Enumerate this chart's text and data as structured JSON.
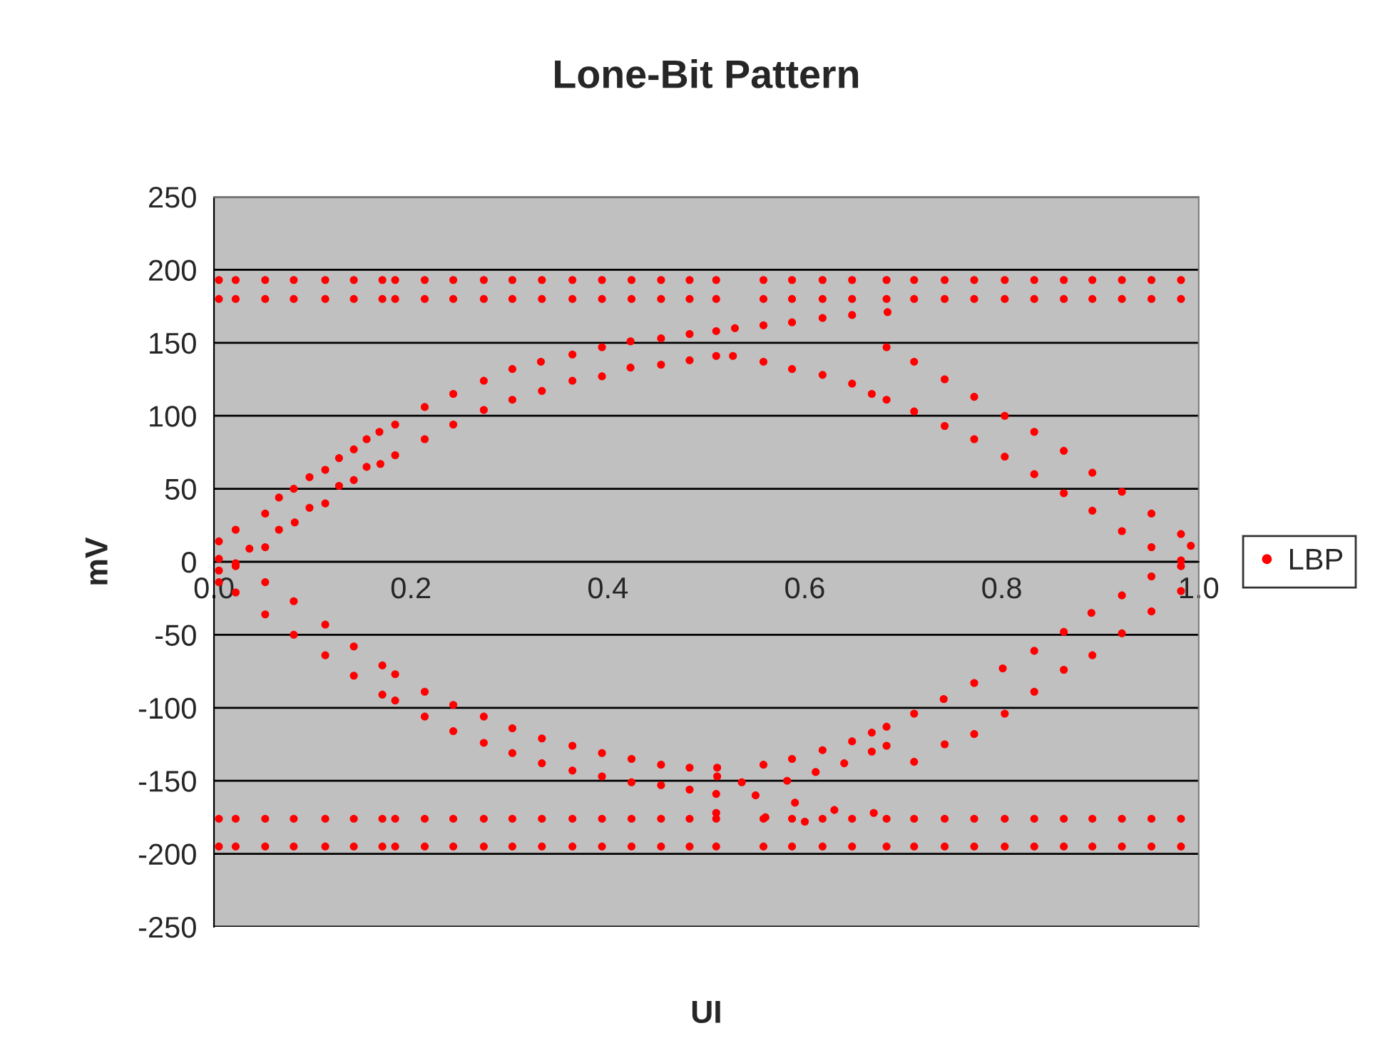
{
  "chart_data": {
    "type": "scatter",
    "title": "Lone-Bit Pattern",
    "xlabel": "UI",
    "ylabel": "mV",
    "xlim": [
      0,
      1
    ],
    "ylim": [
      -250,
      250
    ],
    "xticks": [
      {
        "value": 0,
        "label": "0.0"
      },
      {
        "value": 0.2,
        "label": "0.2"
      },
      {
        "value": 0.4,
        "label": "0.4"
      },
      {
        "value": 0.6,
        "label": "0.6"
      },
      {
        "value": 0.8,
        "label": "0.8"
      },
      {
        "value": 1,
        "label": "1.0"
      }
    ],
    "yticks": [
      -250,
      -200,
      -150,
      -100,
      -50,
      0,
      50,
      100,
      150,
      200,
      250
    ],
    "grid": "y",
    "legend": "right",
    "marker": "circle",
    "series": [
      {
        "name": "LBP",
        "color": "#ff0000",
        "x": [
          0.005,
          0.022,
          0.052,
          0.066,
          0.081,
          0.097,
          0.113,
          0.127,
          0.142,
          0.155,
          0.168,
          0.184,
          0.214,
          0.243,
          0.274,
          0.303,
          0.332,
          0.364,
          0.394,
          0.423,
          0.454,
          0.483,
          0.005,
          0.022,
          0.036,
          0.052,
          0.066,
          0.082,
          0.097,
          0.113,
          0.127,
          0.142,
          0.155,
          0.169,
          0.184,
          0.214,
          0.243,
          0.274,
          0.303,
          0.333,
          0.364,
          0.394,
          0.423,
          0.454,
          0.483,
          0.51,
          0.529,
          0.558,
          0.587,
          0.618,
          0.648,
          0.684,
          0.51,
          0.527,
          0.558,
          0.587,
          0.618,
          0.648,
          0.668,
          0.683,
          0.711,
          0.742,
          0.772,
          0.803,
          0.833,
          0.863,
          0.892,
          0.922,
          0.952,
          0.982,
          0.683,
          0.711,
          0.742,
          0.772,
          0.803,
          0.833,
          0.863,
          0.892,
          0.922,
          0.952,
          0.982,
          0.992,
          0.005,
          0.022,
          0.052,
          0.081,
          0.113,
          0.142,
          0.171,
          0.184,
          0.214,
          0.243,
          0.274,
          0.303,
          0.333,
          0.364,
          0.394,
          0.424,
          0.454,
          0.483,
          0.005,
          0.022,
          0.052,
          0.081,
          0.113,
          0.142,
          0.171,
          0.184,
          0.214,
          0.243,
          0.274,
          0.303,
          0.333,
          0.364,
          0.394,
          0.424,
          0.454,
          0.483,
          0.511,
          0.558,
          0.587,
          0.618,
          0.648,
          0.668,
          0.683,
          0.711,
          0.741,
          0.772,
          0.801,
          0.833,
          0.863,
          0.891,
          0.922,
          0.952,
          0.982,
          0.511,
          0.536,
          0.582,
          0.611,
          0.64,
          0.668,
          0.683,
          0.711,
          0.742,
          0.772,
          0.803,
          0.833,
          0.863,
          0.892,
          0.922,
          0.952,
          0.982,
          0.51,
          0.55,
          0.59,
          0.63,
          0.67,
          0.51,
          0.56,
          0.6,
          0.005,
          0.022,
          0.052,
          0.081,
          0.113,
          0.142,
          0.171,
          0.184,
          0.214,
          0.243,
          0.274,
          0.303,
          0.333,
          0.364,
          0.394,
          0.424,
          0.454,
          0.483,
          0.51,
          0.558,
          0.587,
          0.618,
          0.648,
          0.683,
          0.711,
          0.742,
          0.772,
          0.803,
          0.833,
          0.863,
          0.892,
          0.922,
          0.952,
          0.982,
          0.005,
          0.022,
          0.052,
          0.081,
          0.113,
          0.142,
          0.171,
          0.184,
          0.214,
          0.243,
          0.274,
          0.303,
          0.333,
          0.364,
          0.394,
          0.424,
          0.454,
          0.483,
          0.51,
          0.558,
          0.587,
          0.618,
          0.648,
          0.683,
          0.711,
          0.742,
          0.772,
          0.803,
          0.833,
          0.863,
          0.892,
          0.922,
          0.952,
          0.982,
          0.005,
          0.022,
          0.052,
          0.081,
          0.113,
          0.142,
          0.171,
          0.184,
          0.214,
          0.243,
          0.274,
          0.303,
          0.333,
          0.364,
          0.394,
          0.424,
          0.454,
          0.483,
          0.51,
          0.558,
          0.587,
          0.618,
          0.648,
          0.683,
          0.711,
          0.742,
          0.772,
          0.803,
          0.833,
          0.863,
          0.892,
          0.922,
          0.952,
          0.982,
          0.005,
          0.022,
          0.052,
          0.081,
          0.113,
          0.142,
          0.171,
          0.184,
          0.214,
          0.243,
          0.274,
          0.303,
          0.333,
          0.364,
          0.394,
          0.424,
          0.454,
          0.483,
          0.51,
          0.558,
          0.587,
          0.618,
          0.648,
          0.683,
          0.711,
          0.742,
          0.772,
          0.803,
          0.833,
          0.863,
          0.892,
          0.922,
          0.952,
          0.982
        ],
        "values": [
          14,
          22,
          33,
          44,
          50,
          58,
          63,
          71,
          77,
          84,
          89,
          94,
          106,
          115,
          124,
          132,
          137,
          142,
          147,
          151,
          153,
          156,
          2,
          -3,
          9,
          10,
          22,
          27,
          37,
          40,
          52,
          56,
          65,
          67,
          73,
          84,
          94,
          104,
          111,
          117,
          124,
          127,
          133,
          135,
          138,
          158,
          160,
          162,
          164,
          167,
          169,
          171,
          141,
          141,
          137,
          132,
          128,
          122,
          115,
          111,
          103,
          93,
          84,
          72,
          60,
          47,
          35,
          21,
          10,
          -3,
          147,
          137,
          125,
          113,
          100,
          89,
          76,
          61,
          48,
          33,
          19,
          11,
          -6,
          -1,
          -14,
          -27,
          -43,
          -58,
          -71,
          -77,
          -89,
          -98,
          -106,
          -114,
          -121,
          -126,
          -131,
          -135,
          -139,
          -141,
          -14,
          -21,
          -36,
          -50,
          -64,
          -78,
          -91,
          -95,
          -106,
          -116,
          -124,
          -131,
          -138,
          -143,
          -147,
          -151,
          -153,
          -156,
          -141,
          -139,
          -135,
          -129,
          -123,
          -117,
          -113,
          -104,
          -94,
          -83,
          -73,
          -61,
          -48,
          -35,
          -23,
          -10,
          1,
          -147,
          -151,
          -150,
          -144,
          -138,
          -130,
          -126,
          -137,
          -125,
          -118,
          -104,
          -89,
          -74,
          -64,
          -49,
          -34,
          -20,
          -159,
          -160,
          -165,
          -170,
          -172,
          -172,
          -175,
          -178,
          193,
          193,
          193,
          193,
          193,
          193,
          193,
          193,
          193,
          193,
          193,
          193,
          193,
          193,
          193,
          193,
          193,
          193,
          193,
          193,
          193,
          193,
          193,
          193,
          193,
          193,
          193,
          193,
          193,
          193,
          193,
          193,
          193,
          193,
          180,
          180,
          180,
          180,
          180,
          180,
          180,
          180,
          180,
          180,
          180,
          180,
          180,
          180,
          180,
          180,
          180,
          180,
          180,
          180,
          180,
          180,
          180,
          180,
          180,
          180,
          180,
          180,
          180,
          180,
          180,
          180,
          180,
          180,
          -176,
          -176,
          -176,
          -176,
          -176,
          -176,
          -176,
          -176,
          -176,
          -176,
          -176,
          -176,
          -176,
          -176,
          -176,
          -176,
          -176,
          -176,
          -176,
          -176,
          -176,
          -176,
          -176,
          -176,
          -176,
          -176,
          -176,
          -176,
          -176,
          -176,
          -176,
          -176,
          -176,
          -176,
          -195,
          -195,
          -195,
          -195,
          -195,
          -195,
          -195,
          -195,
          -195,
          -195,
          -195,
          -195,
          -195,
          -195,
          -195,
          -195,
          -195,
          -195,
          -195,
          -195,
          -195,
          -195,
          -195,
          -195,
          -195,
          -195,
          -195,
          -195,
          -195,
          -195,
          -195,
          -195,
          -195,
          -195
        ]
      }
    ]
  }
}
